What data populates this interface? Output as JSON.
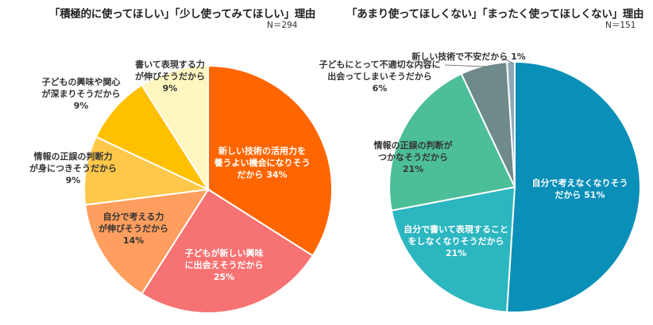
{
  "chart_data": [
    {
      "type": "pie",
      "title": "「積極的に使ってほしい」「少し使ってみてほしい」理由",
      "n_label": "N＝294",
      "slices": [
        {
          "label_lines": [
            "新しい技術の活用力を",
            "養うよい機会になりそう",
            "だから 34%"
          ],
          "value": 34,
          "color": "#FF6600",
          "text_color": "#ffffff"
        },
        {
          "label_lines": [
            "子どもが新しい興味",
            "に出会えそうだから",
            "25%"
          ],
          "value": 25,
          "color": "#F77272",
          "text_color": "#ffffff"
        },
        {
          "label_lines": [
            "自分で考える力",
            "が伸びそうだから",
            "14%"
          ],
          "value": 14,
          "color": "#FF9E5E",
          "text_color": "#333333"
        },
        {
          "label_lines": [
            "情報の正誤の判断力",
            "が身につきそうだから",
            "9%"
          ],
          "value": 9,
          "color": "#FFC84A",
          "text_color": "#333333"
        },
        {
          "label_lines": [
            "子どもの興味や関心",
            "が深まりそうだから",
            "9%"
          ],
          "value": 9,
          "color": "#FFC000",
          "text_color": "#333333"
        },
        {
          "label_lines": [
            "書いて表現する力",
            "が伸びそうだから",
            "9%"
          ],
          "value": 9,
          "color": "#FFF6C0",
          "text_color": "#333333"
        }
      ]
    },
    {
      "type": "pie",
      "title": "「あまり使ってほしくない」「まったく使ってほしくない」理由",
      "n_label": "N＝151",
      "slices": [
        {
          "label_lines": [
            "自分で考えなくなりそう",
            "だから 51%"
          ],
          "value": 51,
          "color": "#0A8FB8",
          "text_color": "#ffffff"
        },
        {
          "label_lines": [
            "自分で書いて表現すること",
            "をしなくなりそうだから",
            "21%"
          ],
          "value": 21,
          "color": "#2BB6C0",
          "text_color": "#ffffff"
        },
        {
          "label_lines": [
            "情報の正誤の判断が",
            "つかなそうだから",
            "21%"
          ],
          "value": 21,
          "color": "#4DBE9A",
          "text_color": "#333333"
        },
        {
          "label_lines": [
            "子どもにとって不適切な内容に",
            "出会ってしまいそうだから",
            "6%"
          ],
          "value": 6,
          "color": "#6E8A8A",
          "text_color": "#333333"
        },
        {
          "label_lines": [
            "新しい技術で不安だから 1%"
          ],
          "value": 1,
          "color": "#8FA8B8",
          "text_color": "#333333"
        }
      ]
    }
  ]
}
